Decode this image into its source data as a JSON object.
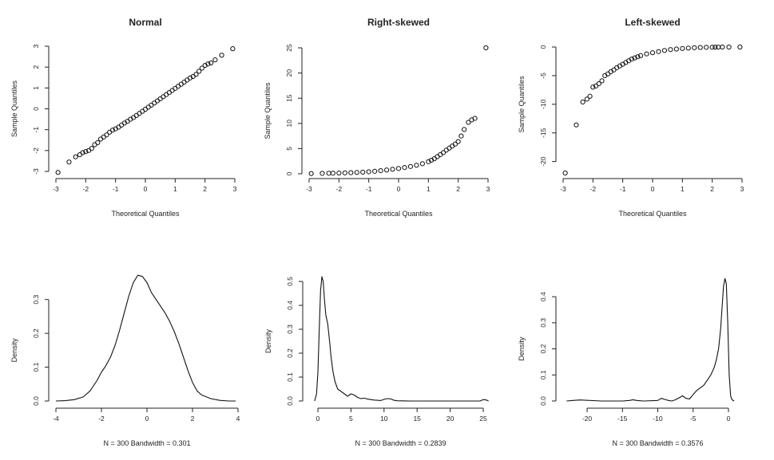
{
  "chart_data": [
    {
      "type": "scatter",
      "title": "Normal",
      "xlabel": "Theoretical Quantiles",
      "ylabel": "Sample Quantiles",
      "xlim": [
        -3,
        3
      ],
      "ylim": [
        -3,
        3
      ],
      "xticks": [
        "-3",
        "-2",
        "-1",
        "0",
        "1",
        "2",
        "3"
      ],
      "yticks": [
        "-3",
        "-2",
        "-1",
        "0",
        "1",
        "2",
        "3"
      ],
      "x": [
        -2.93,
        -2.56,
        -2.34,
        -2.2,
        -2.1,
        -2.0,
        -1.9,
        -1.8,
        -1.7,
        -1.6,
        -1.5,
        -1.4,
        -1.3,
        -1.2,
        -1.1,
        -1.0,
        -0.9,
        -0.8,
        -0.7,
        -0.6,
        -0.5,
        -0.4,
        -0.3,
        -0.2,
        -0.1,
        0.0,
        0.1,
        0.2,
        0.3,
        0.4,
        0.5,
        0.6,
        0.7,
        0.8,
        0.9,
        1.0,
        1.1,
        1.2,
        1.3,
        1.4,
        1.5,
        1.6,
        1.7,
        1.8,
        1.9,
        2.0,
        2.1,
        2.2,
        2.34,
        2.56,
        2.93
      ],
      "y": [
        -3.05,
        -2.55,
        -2.3,
        -2.2,
        -2.1,
        -2.05,
        -2.0,
        -1.9,
        -1.72,
        -1.62,
        -1.45,
        -1.35,
        -1.25,
        -1.12,
        -1.02,
        -0.96,
        -0.88,
        -0.78,
        -0.68,
        -0.6,
        -0.5,
        -0.42,
        -0.32,
        -0.22,
        -0.12,
        -0.02,
        0.08,
        0.18,
        0.28,
        0.38,
        0.48,
        0.58,
        0.68,
        0.78,
        0.88,
        0.98,
        1.08,
        1.18,
        1.28,
        1.38,
        1.48,
        1.55,
        1.65,
        1.8,
        1.95,
        2.08,
        2.15,
        2.2,
        2.35,
        2.57,
        2.88
      ]
    },
    {
      "type": "scatter",
      "title": "Right-skewed",
      "xlabel": "Theoretical Quantiles",
      "ylabel": "Sample Quantiles",
      "xlim": [
        -3,
        3
      ],
      "ylim": [
        0,
        25
      ],
      "xticks": [
        "-3",
        "-2",
        "-1",
        "0",
        "1",
        "2",
        "3"
      ],
      "yticks": [
        "0",
        "5",
        "10",
        "15",
        "20",
        "25"
      ],
      "x": [
        -2.93,
        -2.56,
        -2.34,
        -2.2,
        -2.0,
        -1.8,
        -1.6,
        -1.4,
        -1.2,
        -1.0,
        -0.8,
        -0.6,
        -0.4,
        -0.2,
        0.0,
        0.2,
        0.4,
        0.6,
        0.8,
        1.0,
        1.1,
        1.2,
        1.3,
        1.4,
        1.5,
        1.6,
        1.7,
        1.8,
        1.9,
        2.0,
        2.1,
        2.2,
        2.34,
        2.45,
        2.56,
        2.93
      ],
      "y": [
        0.05,
        0.08,
        0.1,
        0.12,
        0.15,
        0.18,
        0.22,
        0.27,
        0.33,
        0.4,
        0.5,
        0.62,
        0.75,
        0.9,
        1.05,
        1.25,
        1.45,
        1.7,
        2.0,
        2.4,
        2.7,
        3.0,
        3.4,
        3.8,
        4.2,
        4.7,
        5.1,
        5.5,
        5.9,
        6.4,
        7.5,
        8.8,
        10.2,
        10.7,
        11.0,
        25.0
      ]
    },
    {
      "type": "scatter",
      "title": "Left-skewed",
      "xlabel": "Theoretical Quantiles",
      "ylabel": "Sample Quantiles",
      "xlim": [
        -3,
        3
      ],
      "ylim": [
        -22,
        0
      ],
      "xticks": [
        "-3",
        "-2",
        "-1",
        "0",
        "1",
        "2",
        "3"
      ],
      "yticks": [
        "-20",
        "-15",
        "-10",
        "-5",
        "0"
      ],
      "x": [
        -2.93,
        -2.56,
        -2.34,
        -2.2,
        -2.1,
        -2.0,
        -1.9,
        -1.8,
        -1.7,
        -1.6,
        -1.5,
        -1.4,
        -1.3,
        -1.2,
        -1.1,
        -1.0,
        -0.9,
        -0.8,
        -0.7,
        -0.6,
        -0.5,
        -0.4,
        -0.2,
        0.0,
        0.2,
        0.4,
        0.6,
        0.8,
        1.0,
        1.2,
        1.4,
        1.6,
        1.8,
        2.0,
        2.1,
        2.2,
        2.34,
        2.56,
        2.93
      ],
      "y": [
        -22.0,
        -13.6,
        -9.6,
        -9.1,
        -8.6,
        -7.0,
        -6.8,
        -6.4,
        -5.9,
        -5.0,
        -4.7,
        -4.3,
        -4.0,
        -3.6,
        -3.3,
        -3.0,
        -2.7,
        -2.4,
        -2.1,
        -1.9,
        -1.7,
        -1.5,
        -1.2,
        -1.0,
        -0.8,
        -0.6,
        -0.45,
        -0.35,
        -0.25,
        -0.18,
        -0.12,
        -0.08,
        -0.05,
        -0.03,
        -0.02,
        -0.01,
        0.0,
        0.0,
        0.0
      ]
    },
    {
      "type": "line",
      "title": "",
      "xlabel": "N = 300   Bandwidth = 0.301",
      "ylabel": "Density",
      "xlim": [
        -4,
        4
      ],
      "ylim": [
        0,
        0.37
      ],
      "xticks": [
        "-4",
        "-2",
        "0",
        "2",
        "4"
      ],
      "yticks": [
        "0.0",
        "0.1",
        "0.2",
        "0.3"
      ],
      "x": [
        -4.0,
        -3.6,
        -3.2,
        -2.8,
        -2.5,
        -2.2,
        -2.0,
        -1.8,
        -1.6,
        -1.4,
        -1.2,
        -1.0,
        -0.8,
        -0.6,
        -0.4,
        -0.2,
        0.0,
        0.2,
        0.4,
        0.6,
        0.8,
        1.0,
        1.2,
        1.4,
        1.6,
        1.8,
        2.0,
        2.2,
        2.4,
        2.8,
        3.2,
        3.6,
        3.9
      ],
      "y": [
        0.0,
        0.001,
        0.004,
        0.012,
        0.03,
        0.06,
        0.085,
        0.105,
        0.13,
        0.165,
        0.21,
        0.26,
        0.31,
        0.35,
        0.372,
        0.368,
        0.35,
        0.32,
        0.3,
        0.28,
        0.26,
        0.235,
        0.205,
        0.17,
        0.13,
        0.09,
        0.055,
        0.03,
        0.018,
        0.007,
        0.002,
        0.0,
        0.0
      ]
    },
    {
      "type": "line",
      "title": "",
      "xlabel": "N = 300   Bandwidth = 0.2839",
      "ylabel": "Density",
      "xlim": [
        -0.5,
        25.8
      ],
      "ylim": [
        0,
        0.52
      ],
      "xticks": [
        "0",
        "5",
        "10",
        "15",
        "20",
        "25"
      ],
      "yticks": [
        "0.0",
        "0.1",
        "0.2",
        "0.3",
        "0.4",
        "0.5"
      ],
      "x": [
        -0.5,
        -0.2,
        0.0,
        0.2,
        0.4,
        0.6,
        0.8,
        1.0,
        1.2,
        1.5,
        1.8,
        2.0,
        2.3,
        2.6,
        3.0,
        3.5,
        4.0,
        4.5,
        5.0,
        5.5,
        6.0,
        6.5,
        7.0,
        7.5,
        8.0,
        8.5,
        9.0,
        9.5,
        10.0,
        10.5,
        11.0,
        11.5,
        12.0,
        14.0,
        18.0,
        22.0,
        24.5,
        25.0,
        25.5,
        25.8
      ],
      "y": [
        0.0,
        0.03,
        0.12,
        0.3,
        0.46,
        0.52,
        0.5,
        0.42,
        0.36,
        0.32,
        0.24,
        0.18,
        0.12,
        0.08,
        0.05,
        0.04,
        0.03,
        0.02,
        0.03,
        0.025,
        0.015,
        0.01,
        0.012,
        0.008,
        0.006,
        0.004,
        0.003,
        0.002,
        0.007,
        0.01,
        0.009,
        0.003,
        0.001,
        0.0,
        0.0,
        0.0,
        0.0,
        0.006,
        0.004,
        0.0
      ]
    },
    {
      "type": "line",
      "title": "",
      "xlabel": "N = 300   Bandwidth = 0.3576",
      "ylabel": "Density",
      "xlim": [
        -23,
        1
      ],
      "ylim": [
        0,
        0.48
      ],
      "xticks": [
        "-20",
        "-15",
        "-10",
        "-5",
        "0"
      ],
      "yticks": [
        "0.0",
        "0.1",
        "0.2",
        "0.3",
        "0.4"
      ],
      "x": [
        -22.9,
        -22.0,
        -21.0,
        -18.0,
        -15.0,
        -14.0,
        -13.5,
        -13.0,
        -12.0,
        -10.0,
        -9.5,
        -9.0,
        -8.5,
        -8.0,
        -7.5,
        -7.0,
        -6.5,
        -6.0,
        -5.5,
        -5.0,
        -4.5,
        -4.0,
        -3.5,
        -3.0,
        -2.5,
        -2.0,
        -1.7,
        -1.4,
        -1.1,
        -0.9,
        -0.7,
        -0.5,
        -0.3,
        -0.1,
        0.1,
        0.3,
        0.5,
        0.8
      ],
      "y": [
        0.0,
        0.002,
        0.004,
        0.0,
        0.0,
        0.002,
        0.005,
        0.002,
        0.0,
        0.002,
        0.01,
        0.006,
        0.002,
        0.0,
        0.005,
        0.012,
        0.02,
        0.01,
        0.008,
        0.025,
        0.04,
        0.05,
        0.06,
        0.08,
        0.1,
        0.13,
        0.16,
        0.2,
        0.28,
        0.36,
        0.44,
        0.47,
        0.45,
        0.3,
        0.1,
        0.02,
        0.005,
        0.0
      ]
    }
  ]
}
